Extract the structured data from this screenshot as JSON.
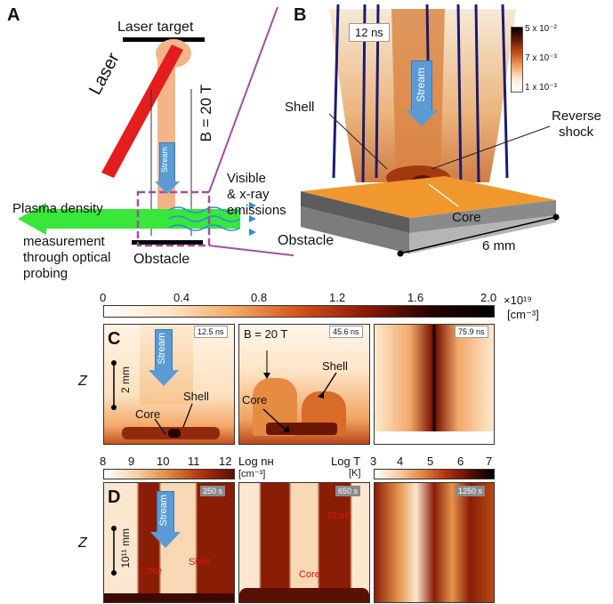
{
  "panel_a": {
    "letter": "A",
    "laser_target": "Laser target",
    "laser": "Laser",
    "b_field": "B = 20 T",
    "stream": "Stream",
    "emissions_line1": "Visible",
    "emissions_line2": "& x-ray",
    "emissions_line3": "emissions",
    "probe_line1": "Plasma density",
    "probe_line2": "measurement",
    "probe_line3": "through optical",
    "probe_line4": "probing",
    "obstacle": "Obstacle"
  },
  "panel_b": {
    "letter": "B",
    "time": "12 ns",
    "stream": "Stream",
    "shell": "Shell",
    "reverse_line1": "Reverse",
    "reverse_line2": "shock",
    "core": "Core",
    "obstacle": "Obstacle",
    "scale": "6 mm",
    "cbar_top": "5 x 10⁻²",
    "cbar_mid": "7 x 10⁻³",
    "cbar_bot": "1 x 10⁻³"
  },
  "colorbar_c": {
    "ticks": [
      "0",
      "0.4",
      "0.8",
      "1.2",
      "1.6",
      "2.0"
    ],
    "unit_line1": "×10¹⁹",
    "unit_line2": "[cm⁻³]"
  },
  "panel_c": {
    "letter": "C",
    "z": "Z",
    "scale": "2 mm",
    "stream": "Stream",
    "core": "Core",
    "shell": "Shell",
    "b_field": "B = 20 T",
    "times": [
      "12.5 ns",
      "45.6 ns",
      "75.9 ns"
    ]
  },
  "colorbar_d": {
    "ticks_left": [
      "8",
      "9",
      "10",
      "11",
      "12"
    ],
    "label_nh_line1": "Log nʜ",
    "label_nh_line2": "[cm⁻³]",
    "label_t_line1": "Log T",
    "label_t_line2": "[K]",
    "ticks_right": [
      "3",
      "4",
      "5",
      "6",
      "7"
    ]
  },
  "panel_d": {
    "letter": "D",
    "z": "Z",
    "scale": "10¹¹ mm",
    "stream": "Stream",
    "core": "Core",
    "shell": "Shell",
    "times": [
      "250 s",
      "650 s",
      "1250 s"
    ]
  }
}
